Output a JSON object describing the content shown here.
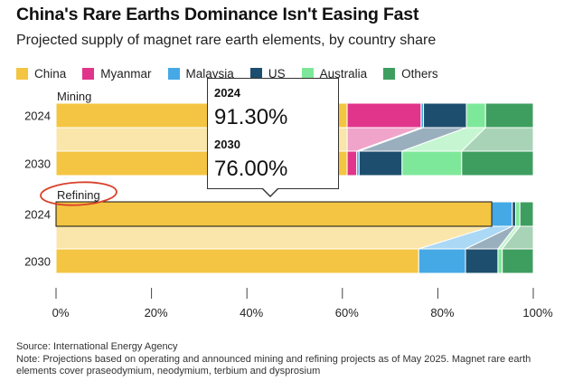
{
  "title": "China's Rare Earths Dominance Isn't Easing Fast",
  "subtitle": "Projected supply of magnet rare earth elements, by country share",
  "legend": [
    {
      "label": "China",
      "color": "#F4C542"
    },
    {
      "label": "Myanmar",
      "color": "#E0358A"
    },
    {
      "label": "Malaysia",
      "color": "#45A9E6"
    },
    {
      "label": "US",
      "color": "#1E4E6E"
    },
    {
      "label": "Australia",
      "color": "#7EE89A"
    },
    {
      "label": "Others",
      "color": "#3E9E5F"
    }
  ],
  "chart_data": {
    "type": "bar",
    "orientation": "horizontal",
    "stacked": true,
    "normalized": true,
    "xlim": [
      0,
      100
    ],
    "x_ticks": [
      "0%",
      "20%",
      "40%",
      "60%",
      "80%",
      "100%"
    ],
    "groups": [
      {
        "label": "Mining",
        "rows": [
          {
            "year": "2024",
            "values": {
              "China": 61.0,
              "Myanmar": 15.5,
              "Malaysia": 0.5,
              "US": 9.0,
              "Australia": 4.0,
              "Others": 10.0
            }
          },
          {
            "year": "2030",
            "values": {
              "China": 61.0,
              "Myanmar": 2.0,
              "Malaysia": 0.5,
              "US": 9.0,
              "Australia": 12.5,
              "Others": 15.0
            }
          }
        ]
      },
      {
        "label": "Refining",
        "rows": [
          {
            "year": "2024",
            "values": {
              "China": 91.3,
              "Myanmar": 0.0,
              "Malaysia": 4.3,
              "US": 0.7,
              "Australia": 0.9,
              "Others": 2.8
            }
          },
          {
            "year": "2030",
            "values": {
              "China": 76.0,
              "Myanmar": 0.0,
              "Malaysia": 9.8,
              "US": 6.8,
              "Australia": 0.9,
              "Others": 6.5
            }
          }
        ]
      }
    ]
  },
  "tooltip": {
    "year_a": "2024",
    "value_a": "91.30%",
    "year_b": "2030",
    "value_b": "76.00%"
  },
  "source": "Source: International Energy Agency",
  "note": "Note: Projections based on operating and announced mining and refining projects as of May 2025. Magnet rare earth elements cover praseodymium, neodymium, terbium and dysprosium"
}
